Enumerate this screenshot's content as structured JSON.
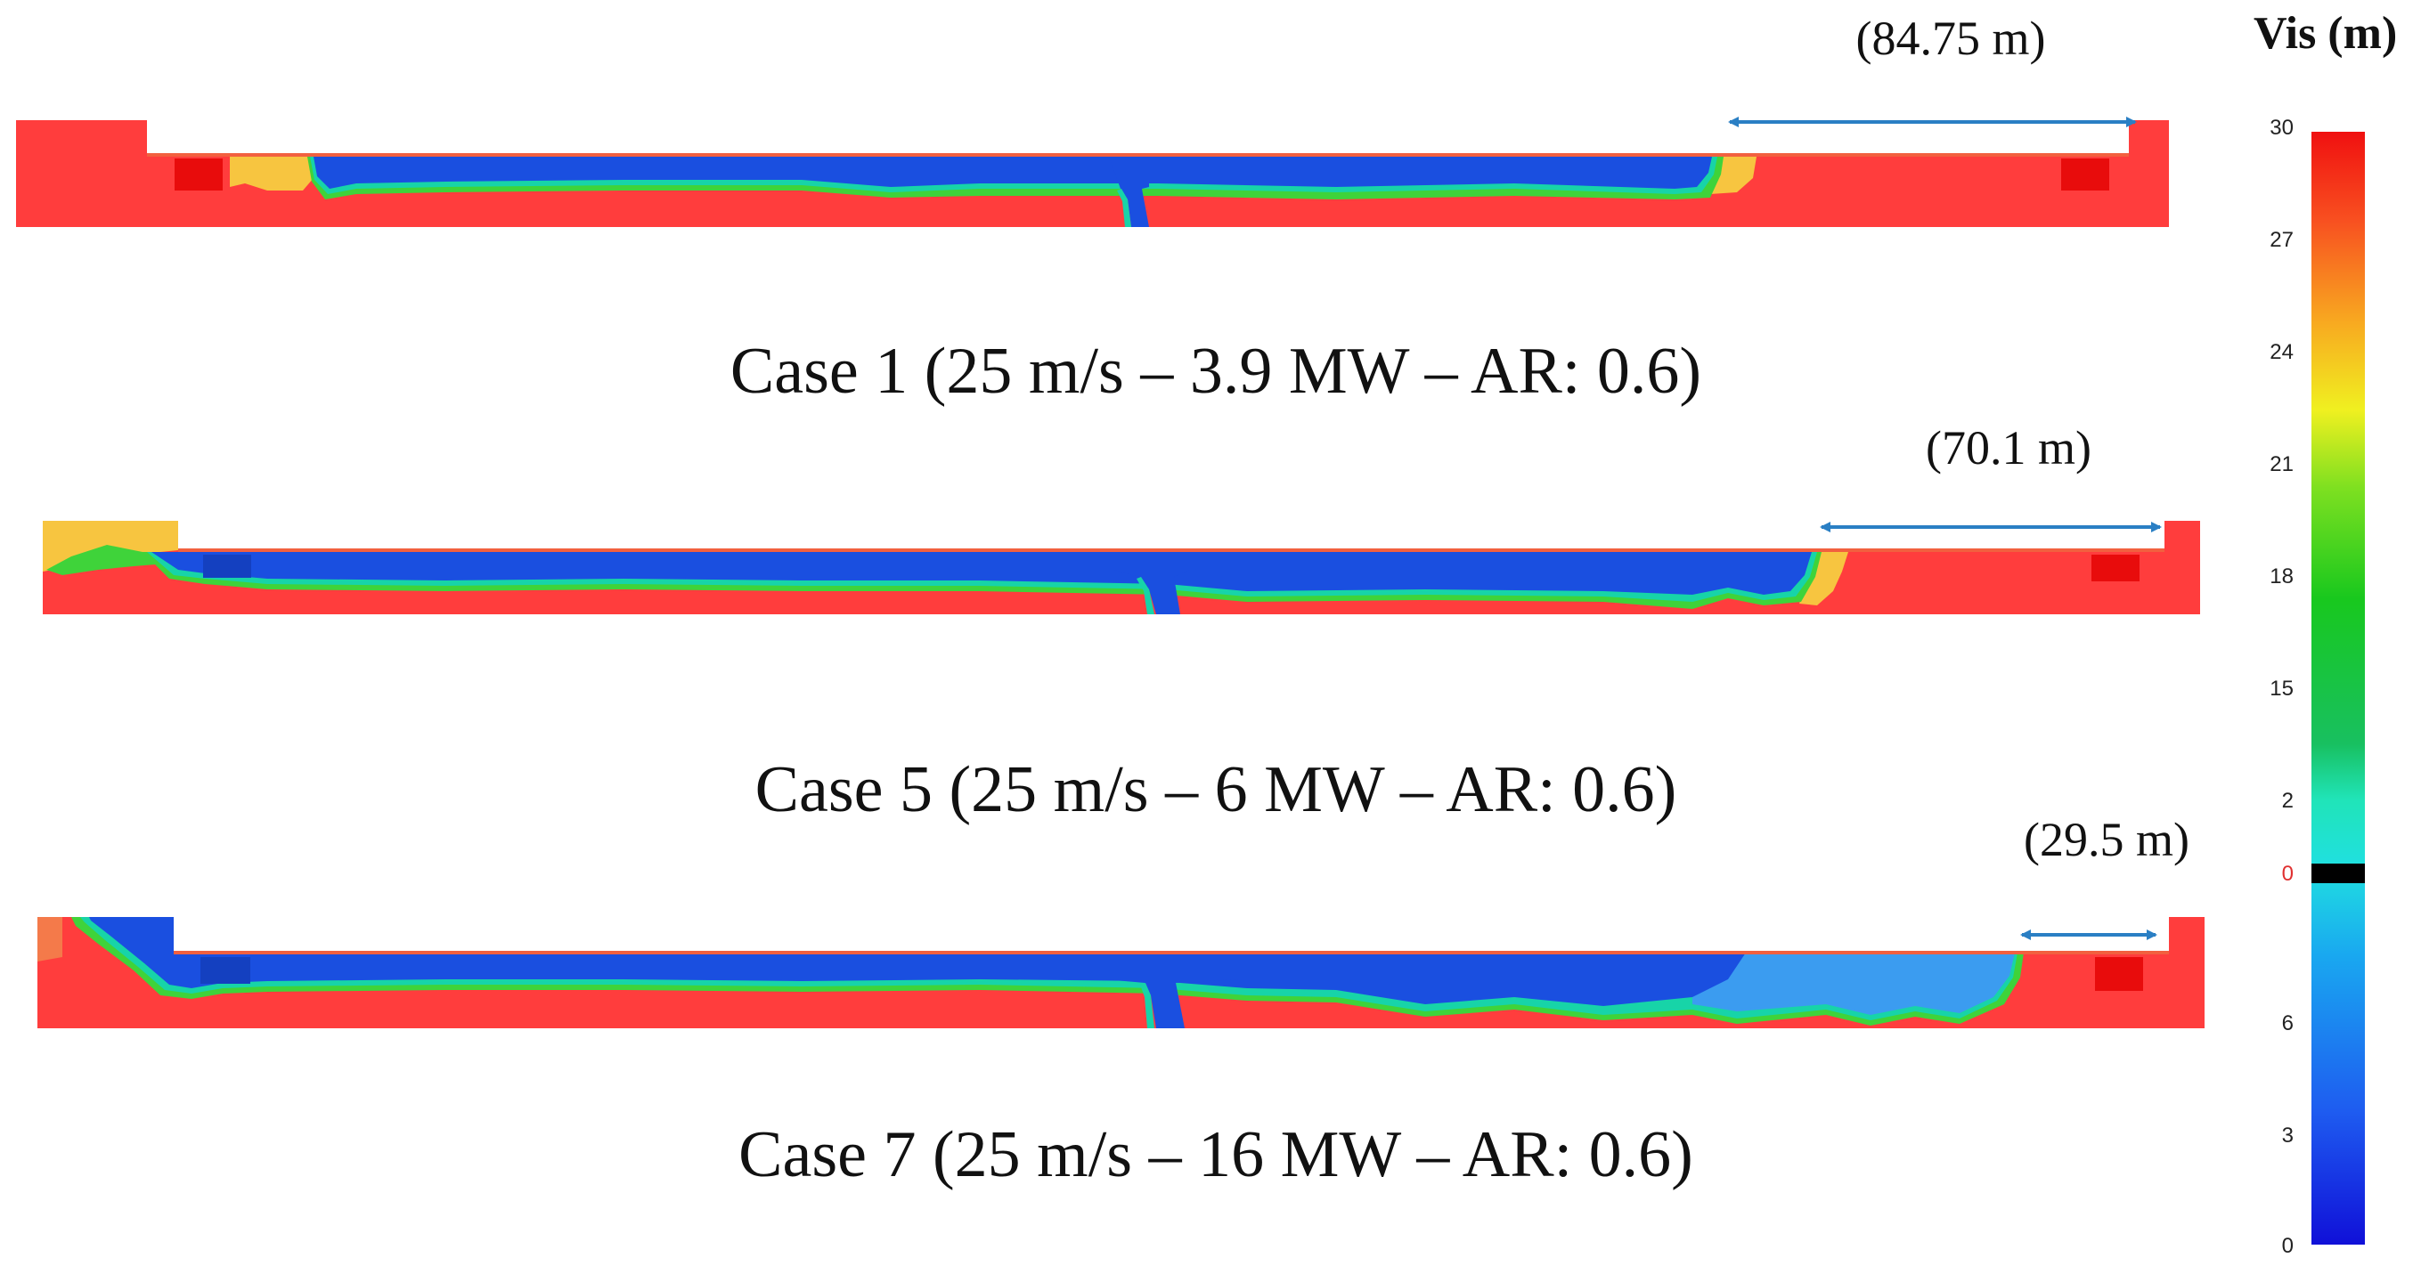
{
  "colorbar": {
    "title": "Vis (m)",
    "ticks": [
      {
        "label": "30",
        "color": "#222222"
      },
      {
        "label": "27",
        "color": "#222222"
      },
      {
        "label": "24",
        "color": "#222222"
      },
      {
        "label": "21",
        "color": "#222222"
      },
      {
        "label": "18",
        "color": "#222222"
      },
      {
        "label": "15",
        "color": "#222222"
      },
      {
        "label": "2",
        "color": "#222222"
      },
      {
        "label": "0",
        "color": "#e03030"
      },
      {
        "label": "6",
        "color": "#222222"
      },
      {
        "label": "3",
        "color": "#222222"
      },
      {
        "label": "0",
        "color": "#222222"
      }
    ]
  },
  "cases": [
    {
      "caption": "Case 1 (25 m/s – 3.9 MW – AR: 0.6)",
      "distance_label": "(84.75 m)"
    },
    {
      "caption": "Case 5 (25 m/s – 6 MW – AR: 0.6)",
      "distance_label": "(70.1 m)"
    },
    {
      "caption": "Case 7 (25 m/s – 16 MW – AR: 0.6)",
      "distance_label": "(29.5 m)"
    }
  ],
  "colors": {
    "clear": "#ff3d3d",
    "smoke": "#1a4fe0",
    "edge": "#17d4a8",
    "fringe": "#3fd33a",
    "hot": "#f7c540",
    "arrow": "#2a7fc4"
  }
}
